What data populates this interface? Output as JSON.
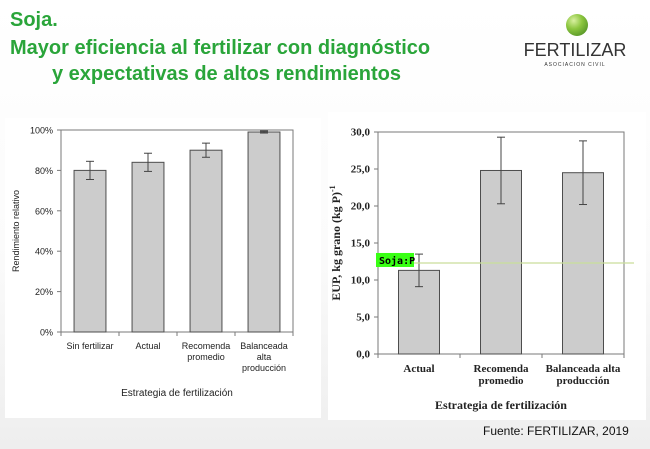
{
  "header": {
    "title_line1": "Soja.",
    "title_line2": "Mayor eficiencia al fertilizar con diagnóstico",
    "title_line3": "y expectativas de altos rendimientos"
  },
  "logo": {
    "name": "FERTILIZAR",
    "subtitle": "ASOCIACION CIVIL",
    "icon": "green-sphere-icon"
  },
  "source": "Fuente: FERTILIZAR, 2019",
  "colors": {
    "title": "#2aa53a",
    "bar_fill": "#cccccc",
    "bar_stroke": "#4d4d4d",
    "reference_line": "#c9de9a",
    "marker_bg": "#39ff14"
  },
  "chart_data": [
    {
      "type": "bar",
      "categories": [
        "Sin fertilizar",
        "Actual",
        "Recomenda promedio",
        "Balanceada alta producción"
      ],
      "category_lines": [
        [
          "Sin fertilizar"
        ],
        [
          "Actual"
        ],
        [
          "Recomenda",
          "promedio"
        ],
        [
          "Balanceada",
          "alta",
          "producción"
        ]
      ],
      "values": [
        80,
        84,
        90,
        99
      ],
      "error": [
        4.5,
        4.5,
        3.5,
        0.5
      ],
      "xlabel": "Estrategia de fertilización",
      "ylabel": "Rendimiento relativo",
      "ylim": [
        0,
        100
      ],
      "yticks": [
        0,
        20,
        40,
        60,
        80,
        100
      ],
      "ytick_labels": [
        "0%",
        "20%",
        "40%",
        "60%",
        "80%",
        "100%"
      ],
      "grid": false
    },
    {
      "type": "bar",
      "categories": [
        "Actual",
        "Recomenda promedio",
        "Balanceada alta producción"
      ],
      "category_lines": [
        [
          "Actual"
        ],
        [
          "Recomenda",
          "promedio"
        ],
        [
          "Balanceada alta",
          "producción"
        ]
      ],
      "values": [
        11.3,
        24.8,
        24.5
      ],
      "error": [
        2.2,
        4.5,
        4.3
      ],
      "xlabel": "Estrategia de fertilización",
      "ylabel_main": "EUP, kg grano (kg P)",
      "ylabel_sup": "-1",
      "ylim": [
        0,
        30
      ],
      "yticks": [
        0,
        5,
        10,
        15,
        20,
        25,
        30
      ],
      "ytick_labels": [
        "0,0",
        "5,0",
        "10,0",
        "15,0",
        "20,0",
        "25,0",
        "30,0"
      ],
      "reference_line": {
        "label": "Soja:P",
        "value": 12.3
      },
      "grid": false
    }
  ]
}
